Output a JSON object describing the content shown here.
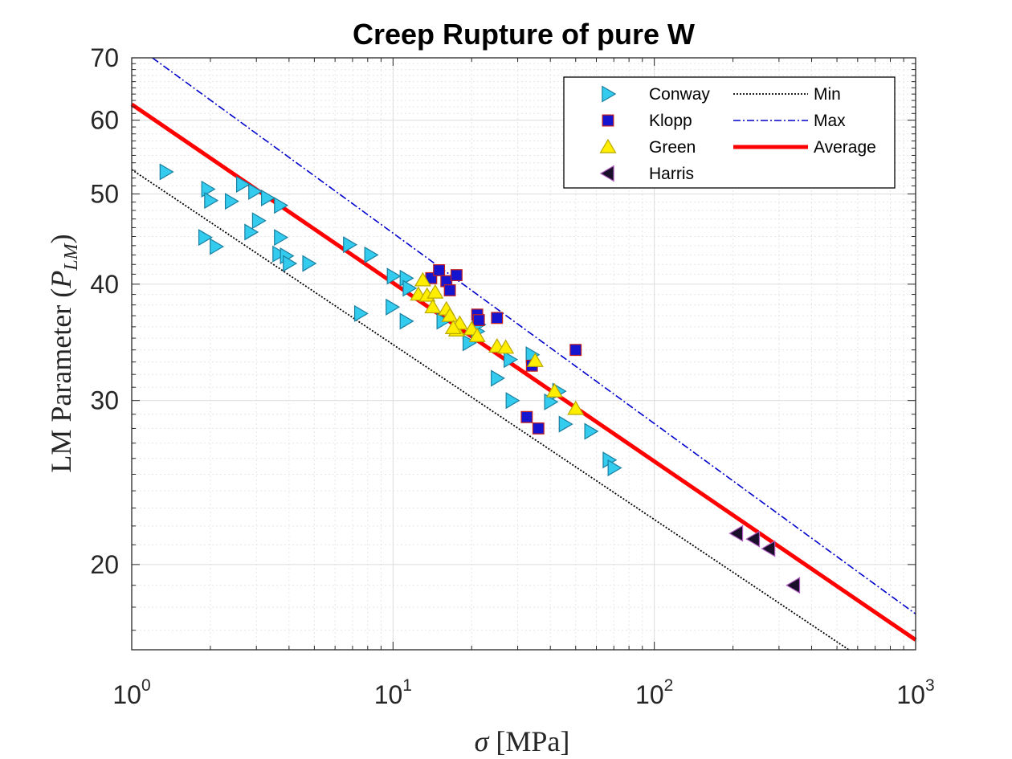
{
  "chart_data": {
    "type": "scatter",
    "title": "Creep Rupture of pure W",
    "xlabel": {
      "prefix": "σ",
      "suffix": " [MPa]"
    },
    "ylabel": {
      "text": "LM Parameter (",
      "symbol": "P",
      "sub": "LM",
      "close": ")"
    },
    "xscale": "log",
    "yscale": "log",
    "xlim": [
      1,
      1000
    ],
    "ylim": [
      16.2,
      70
    ],
    "grid": true,
    "legend_position": "top-right",
    "x_ticks": [
      {
        "base": "10",
        "exp": "0",
        "value": 1
      },
      {
        "base": "10",
        "exp": "1",
        "value": 10
      },
      {
        "base": "10",
        "exp": "2",
        "value": 100
      },
      {
        "base": "10",
        "exp": "3",
        "value": 1000
      }
    ],
    "y_ticks": [
      "20",
      "30",
      "40",
      "50",
      "60",
      "70"
    ],
    "series": [
      {
        "name": "Conway",
        "kind": "points",
        "marker": "triangle-right",
        "color": "#33ccee",
        "edge": "#1a7fa0",
        "points": [
          [
            1.35,
            52.8
          ],
          [
            1.95,
            50.6
          ],
          [
            2.0,
            49.2
          ],
          [
            2.4,
            49.1
          ],
          [
            2.65,
            51.2
          ],
          [
            2.95,
            50.3
          ],
          [
            3.3,
            49.5
          ],
          [
            3.7,
            48.6
          ],
          [
            1.9,
            44.9
          ],
          [
            2.1,
            43.9
          ],
          [
            2.85,
            45.5
          ],
          [
            3.05,
            46.8
          ],
          [
            3.7,
            44.9
          ],
          [
            3.65,
            43.1
          ],
          [
            3.9,
            42.9
          ],
          [
            4.0,
            42.1
          ],
          [
            4.75,
            42.1
          ],
          [
            6.8,
            44.1
          ],
          [
            8.2,
            43.0
          ],
          [
            10.0,
            40.8
          ],
          [
            11.2,
            40.6
          ],
          [
            11.5,
            39.6
          ],
          [
            7.5,
            37.2
          ],
          [
            9.9,
            37.8
          ],
          [
            11.2,
            36.5
          ],
          [
            15.5,
            36.5
          ],
          [
            19.5,
            34.6
          ],
          [
            21.0,
            35.6
          ],
          [
            21.2,
            36.2
          ],
          [
            25.0,
            31.7
          ],
          [
            28.0,
            33.2
          ],
          [
            28.5,
            30.0
          ],
          [
            34.0,
            33.6
          ],
          [
            40.0,
            29.9
          ],
          [
            43.0,
            30.7
          ],
          [
            45.5,
            28.3
          ],
          [
            57.0,
            27.8
          ],
          [
            67.0,
            25.9
          ],
          [
            70.0,
            25.4
          ]
        ]
      },
      {
        "name": "Klopp",
        "kind": "points",
        "marker": "square",
        "color": "#1515d0",
        "edge": "#c02020",
        "points": [
          [
            14.0,
            40.6
          ],
          [
            15.0,
            41.4
          ],
          [
            16.0,
            40.3
          ],
          [
            16.5,
            39.4
          ],
          [
            17.5,
            40.9
          ],
          [
            21.0,
            37.1
          ],
          [
            21.3,
            36.6
          ],
          [
            25.0,
            36.8
          ],
          [
            34.0,
            32.7
          ],
          [
            32.5,
            28.8
          ],
          [
            36.0,
            28.0
          ],
          [
            50.0,
            34.0
          ]
        ]
      },
      {
        "name": "Green",
        "kind": "points",
        "marker": "triangle-up",
        "color": "#ffee00",
        "edge": "#b8a800",
        "points": [
          [
            13.0,
            40.4
          ],
          [
            12.5,
            39.0
          ],
          [
            13.5,
            38.9
          ],
          [
            14.5,
            39.2
          ],
          [
            14.2,
            37.8
          ],
          [
            16.0,
            37.6
          ],
          [
            16.5,
            37.0
          ],
          [
            17.5,
            35.7
          ],
          [
            18.0,
            36.3
          ],
          [
            17.0,
            35.9
          ],
          [
            20.0,
            35.8
          ],
          [
            21.0,
            35.2
          ],
          [
            25.0,
            34.3
          ],
          [
            27.0,
            34.2
          ],
          [
            35.0,
            33.1
          ],
          [
            41.5,
            30.7
          ],
          [
            50.0,
            29.4
          ]
        ]
      },
      {
        "name": "Harris",
        "kind": "points",
        "marker": "triangle-left",
        "color": "#1a0f2a",
        "edge": "#b060c0",
        "points": [
          [
            207,
            21.6
          ],
          [
            240,
            21.3
          ],
          [
            275,
            20.8
          ],
          [
            342,
            19.0
          ]
        ]
      },
      {
        "name": "Min",
        "kind": "line",
        "style": "dotted",
        "color": "#000000",
        "points": [
          [
            1,
            53.1
          ],
          [
            555,
            16.2
          ]
        ]
      },
      {
        "name": "Max",
        "kind": "line",
        "style": "dashdot",
        "color": "#0000cc",
        "points": [
          [
            1.2,
            70
          ],
          [
            1000,
            17.7
          ]
        ]
      },
      {
        "name": "Average",
        "kind": "line",
        "style": "solid",
        "color": "#ff0000",
        "points": [
          [
            1,
            62.4
          ],
          [
            1000,
            16.6
          ]
        ]
      }
    ]
  }
}
